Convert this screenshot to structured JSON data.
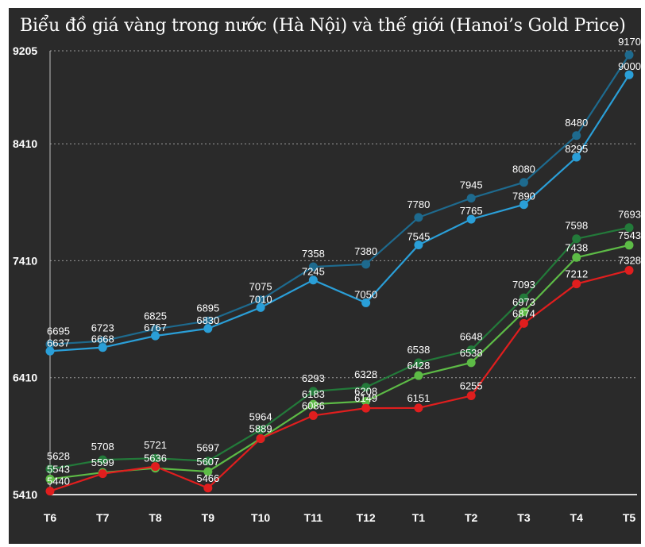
{
  "chart_data": {
    "type": "line",
    "title": "Biểu đồ giá vàng trong nước (Hà Nội) và thế giới (Hanoi’s Gold Price)",
    "xlabel": "",
    "ylabel": "",
    "categories": [
      "T6",
      "T7",
      "T8",
      "T9",
      "T10",
      "T11",
      "T12",
      "T1",
      "T2",
      "T3",
      "T4",
      "T5"
    ],
    "yticks": [
      5410,
      6410,
      7410,
      8410,
      9205
    ],
    "ylim": [
      5410,
      9205
    ],
    "grid": "horizontal dotted",
    "series": [
      {
        "name": "Blue upper",
        "color": "#1e6a8e",
        "values": [
          6695,
          6723,
          6825,
          6895,
          7075,
          7358,
          7380,
          7780,
          7945,
          8080,
          8480,
          9170
        ],
        "labels": [
          "6695",
          "6723",
          "6825",
          "6895",
          "7075",
          "7358",
          "7380",
          "7780",
          "7945",
          "8080",
          "8480",
          "9170"
        ]
      },
      {
        "name": "Blue lower",
        "color": "#2a9fd8",
        "values": [
          6637,
          6668,
          6767,
          6830,
          7010,
          7245,
          7050,
          7545,
          7765,
          7890,
          8295,
          9000
        ],
        "labels": [
          "6637",
          "6668",
          "6767",
          "6830",
          "7010",
          "7245",
          "7050",
          "7545",
          "7765",
          "7890",
          "8295",
          "9000"
        ]
      },
      {
        "name": "Dark green",
        "color": "#237a3a",
        "values": [
          5628,
          5708,
          5721,
          5697,
          5964,
          6293,
          6328,
          6538,
          6648,
          7093,
          7598,
          7693
        ],
        "labels": [
          "5628",
          "5708",
          "5721",
          "5697",
          "5964",
          "6293",
          "6328",
          "6538",
          "6648",
          "7093",
          "7598",
          "7693"
        ]
      },
      {
        "name": "Green",
        "color": "#5dbb46",
        "values": [
          5543,
          5599,
          5636,
          5607,
          5889,
          6183,
          6208,
          6428,
          6538,
          6973,
          7438,
          7543
        ],
        "labels": [
          "5543",
          "5599",
          "5636",
          "5607",
          "5889",
          "6183",
          "6208",
          "6428",
          "6538",
          "6973",
          "7438",
          "7543"
        ]
      },
      {
        "name": "Red",
        "color": "#e01e1e",
        "values": [
          5440,
          5589,
          5650,
          5466,
          5889,
          6086,
          6149,
          6151,
          6255,
          6874,
          7212,
          7328
        ],
        "labels": [
          "5440",
          "",
          "",
          "5466",
          "",
          "6086",
          "6149",
          "6151",
          "6255",
          "6874",
          "7212",
          "7328"
        ]
      }
    ]
  }
}
